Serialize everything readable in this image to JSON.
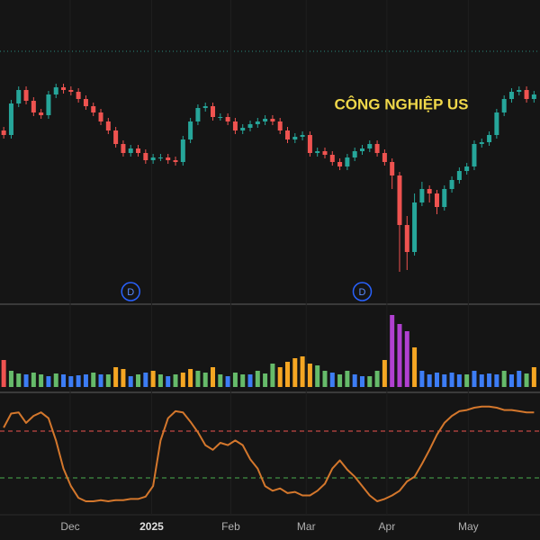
{
  "chart_data": [
    {
      "type": "candlestick",
      "title": "CÔNG NGHIỆP US",
      "up_color": "#26a69a",
      "down_color": "#ef5350",
      "xlim": [
        -0.5,
        71.8
      ],
      "ylim": [
        90,
        350
      ],
      "xticks": [
        {
          "value": 8.9,
          "label": "Dec"
        },
        {
          "value": 19.8,
          "label": "2025"
        },
        {
          "value": 30.4,
          "label": "Feb"
        },
        {
          "value": 40.5,
          "label": "Mar"
        },
        {
          "value": 51.3,
          "label": "Apr"
        },
        {
          "value": 62.2,
          "label": "May"
        }
      ],
      "markers": [
        {
          "x": 17,
          "label": "D"
        },
        {
          "x": 48,
          "label": "D"
        }
      ],
      "open": [
        255,
        250,
        285,
        300,
        288,
        275,
        272,
        295,
        303,
        300,
        298,
        290,
        282,
        275,
        265,
        255,
        240,
        230,
        235,
        230,
        222,
        225,
        225,
        222,
        220,
        245,
        265,
        280,
        282,
        270,
        270,
        265,
        255,
        258,
        262,
        265,
        268,
        265,
        255,
        245,
        248,
        250,
        230,
        232,
        228,
        220,
        215,
        225,
        232,
        235,
        240,
        230,
        220,
        205,
        150,
        120,
        175,
        190,
        185,
        170,
        190,
        200,
        210,
        215,
        240,
        242,
        250,
        275,
        290,
        298,
        300,
        290
      ],
      "high": [
        259,
        289,
        304,
        304,
        292,
        279,
        299,
        307,
        307,
        304,
        302,
        294,
        286,
        279,
        269,
        259,
        244,
        239,
        239,
        234,
        229,
        229,
        229,
        226,
        249,
        269,
        284,
        286,
        286,
        274,
        274,
        269,
        262,
        266,
        269,
        272,
        272,
        269,
        259,
        252,
        254,
        254,
        236,
        236,
        232,
        224,
        229,
        236,
        239,
        244,
        244,
        234,
        224,
        209,
        160,
        185,
        198,
        194,
        189,
        194,
        204,
        214,
        219,
        244,
        246,
        254,
        279,
        294,
        302,
        304,
        304,
        299
      ],
      "low": [
        246,
        246,
        281,
        284,
        271,
        268,
        268,
        291,
        296,
        294,
        286,
        278,
        271,
        261,
        251,
        236,
        226,
        226,
        226,
        218,
        218,
        221,
        218,
        216,
        216,
        241,
        261,
        276,
        266,
        266,
        261,
        251,
        251,
        254,
        258,
        261,
        261,
        251,
        241,
        241,
        244,
        226,
        226,
        224,
        216,
        211,
        211,
        221,
        228,
        231,
        226,
        216,
        190,
        98,
        100,
        116,
        171,
        175,
        162,
        166,
        186,
        196,
        206,
        211,
        236,
        238,
        246,
        271,
        286,
        294,
        286,
        286
      ],
      "close": [
        250,
        285,
        300,
        288,
        275,
        272,
        295,
        303,
        300,
        298,
        290,
        282,
        275,
        265,
        255,
        240,
        230,
        235,
        230,
        222,
        225,
        225,
        222,
        220,
        245,
        265,
        280,
        282,
        270,
        270,
        265,
        255,
        258,
        262,
        265,
        268,
        265,
        255,
        245,
        248,
        250,
        230,
        232,
        228,
        220,
        215,
        225,
        232,
        235,
        240,
        230,
        220,
        205,
        150,
        120,
        175,
        190,
        185,
        170,
        190,
        200,
        210,
        215,
        240,
        242,
        250,
        275,
        290,
        298,
        300,
        290,
        295
      ]
    },
    {
      "type": "bar",
      "ylim": [
        0,
        90
      ],
      "values": [
        30,
        18,
        15,
        14,
        16,
        14,
        12,
        15,
        14,
        12,
        13,
        14,
        16,
        14,
        14,
        22,
        20,
        12,
        14,
        16,
        18,
        14,
        12,
        14,
        16,
        20,
        18,
        16,
        22,
        14,
        12,
        16,
        14,
        14,
        18,
        15,
        26,
        22,
        28,
        32,
        34,
        26,
        24,
        18,
        16,
        14,
        18,
        14,
        12,
        12,
        18,
        30,
        80,
        70,
        62,
        44,
        18,
        14,
        16,
        14,
        16,
        14,
        14,
        18,
        14,
        15,
        14,
        18,
        14,
        18,
        15,
        22
      ],
      "colors": [
        "#ef5350",
        "#66bb6a",
        "#66bb6a",
        "#3d7df5",
        "#66bb6a",
        "#66bb6a",
        "#3d7df5",
        "#66bb6a",
        "#3d7df5",
        "#3d7df5",
        "#3d7df5",
        "#3d7df5",
        "#66bb6a",
        "#3d7df5",
        "#66bb6a",
        "#f5a623",
        "#f5a623",
        "#3d7df5",
        "#66bb6a",
        "#3d7df5",
        "#f5a623",
        "#66bb6a",
        "#3d7df5",
        "#66bb6a",
        "#f5a623",
        "#f5a623",
        "#66bb6a",
        "#66bb6a",
        "#f5a623",
        "#66bb6a",
        "#3d7df5",
        "#66bb6a",
        "#66bb6a",
        "#3d7df5",
        "#66bb6a",
        "#66bb6a",
        "#66bb6a",
        "#f5a623",
        "#f5a623",
        "#f5a623",
        "#f5a623",
        "#f5a623",
        "#66bb6a",
        "#66bb6a",
        "#3d7df5",
        "#66bb6a",
        "#66bb6a",
        "#3d7df5",
        "#3d7df5",
        "#66bb6a",
        "#66bb6a",
        "#f5a623",
        "#b040d0",
        "#b040d0",
        "#b040d0",
        "#f5a623",
        "#3d7df5",
        "#3d7df5",
        "#3d7df5",
        "#3d7df5",
        "#3d7df5",
        "#3d7df5",
        "#66bb6a",
        "#3d7df5",
        "#3d7df5",
        "#3d7df5",
        "#3d7df5",
        "#66bb6a",
        "#3d7df5",
        "#3d7df5",
        "#66bb6a",
        "#f5a623"
      ]
    },
    {
      "type": "line",
      "color": "#d4772c",
      "ylim": [
        0,
        100
      ],
      "levels": [
        {
          "value": 70,
          "color": "#ef5350"
        },
        {
          "value": 30,
          "color": "#4caf50"
        }
      ],
      "values": [
        73,
        85,
        86,
        77,
        83,
        86,
        81,
        62,
        38,
        23,
        13,
        10,
        10,
        11,
        10,
        11,
        11,
        12,
        12,
        14,
        23,
        62,
        81,
        87,
        86,
        78,
        69,
        58,
        54,
        60,
        58,
        62,
        58,
        46,
        38,
        23,
        19,
        21,
        17,
        18,
        15,
        15,
        19,
        25,
        38,
        45,
        37,
        31,
        23,
        15,
        10,
        12,
        15,
        19,
        27,
        31,
        42,
        54,
        67,
        77,
        83,
        87,
        88,
        90,
        91,
        91,
        90,
        88,
        88,
        87,
        86,
        86
      ]
    }
  ]
}
